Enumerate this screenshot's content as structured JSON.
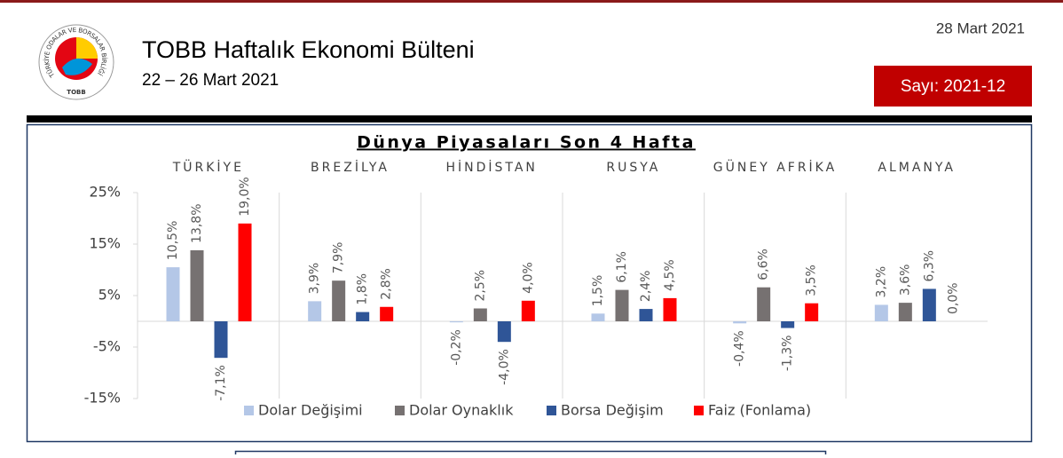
{
  "header": {
    "title": "TOBB Haftalık Ekonomi Bülteni",
    "subtitle": "22 – 26 Mart 2021",
    "date": "28 Mart 2021",
    "issue": "Sayı: 2021-12",
    "logo_text": "TÜRKİYE ODALAR VE BORSALAR BİRLİĞİ",
    "logo_abbr": "TOBB"
  },
  "chart_data": {
    "type": "bar",
    "title": "Dünya Piyasaları Son 4 Hafta",
    "categories": [
      "TÜRKİYE",
      "BREZİLYA",
      "HİNDİSTAN",
      "RUSYA",
      "GÜNEY AFRİKA",
      "ALMANYA"
    ],
    "series": [
      {
        "name": "Dolar Değişimi",
        "color": "#b4c7e7",
        "values": [
          10.5,
          3.9,
          -0.2,
          1.5,
          -0.4,
          3.2
        ],
        "value_labels": [
          "10,5%",
          "3,9%",
          "-0,2%",
          "1,5%",
          "-0,4%",
          "3,2%"
        ]
      },
      {
        "name": "Dolar Oynaklık",
        "color": "#767171",
        "values": [
          13.8,
          7.9,
          2.5,
          6.1,
          6.6,
          3.6
        ],
        "value_labels": [
          "13,8%",
          "7,9%",
          "2,5%",
          "6,1%",
          "6,6%",
          "3,6%"
        ]
      },
      {
        "name": "Borsa Değişim",
        "color": "#2f5597",
        "values": [
          -7.1,
          1.8,
          -4.0,
          2.4,
          -1.3,
          6.3
        ],
        "value_labels": [
          "-7,1%",
          "1,8%",
          "-4,0%",
          "2,4%",
          "-1,3%",
          "6,3%"
        ]
      },
      {
        "name": "Faiz (Fonlama)",
        "color": "#ff0000",
        "values": [
          19.0,
          2.8,
          4.0,
          4.5,
          3.5,
          0.0
        ],
        "value_labels": [
          "19,0%",
          "2,8%",
          "4,0%",
          "4,5%",
          "3,5%",
          "0,0%"
        ]
      }
    ],
    "ylim": [
      -15,
      25
    ],
    "yticks": [
      {
        "value": 25,
        "label": "25%"
      },
      {
        "value": 15,
        "label": "15%"
      },
      {
        "value": 5,
        "label": "5%"
      },
      {
        "value": -5,
        "label": "-5%"
      },
      {
        "value": -15,
        "label": "-15%"
      }
    ]
  }
}
